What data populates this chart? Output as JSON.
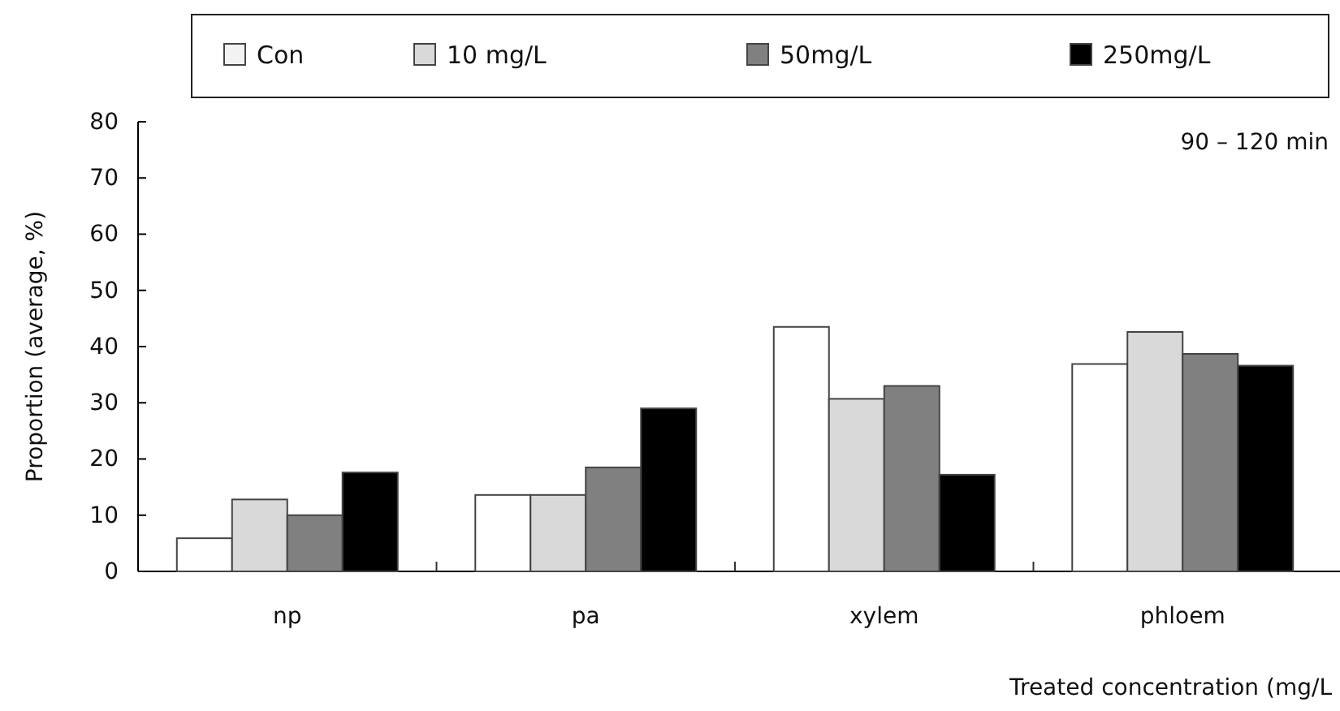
{
  "chart_data": {
    "type": "bar",
    "categories": [
      "np",
      "pa",
      "xylem",
      "phloem"
    ],
    "series": [
      {
        "name": "Con",
        "color": "#ffffff",
        "values": [
          5.9,
          13.6,
          43.5,
          36.9
        ]
      },
      {
        "name": "10 mg/L",
        "color": "#d9d9d9",
        "values": [
          12.8,
          13.6,
          30.7,
          42.6
        ]
      },
      {
        "name": "50mg/L",
        "color": "#808080",
        "values": [
          10,
          18.5,
          33,
          38.7
        ]
      },
      {
        "name": "250mg/L",
        "color": "#000000",
        "values": [
          17.6,
          29,
          17.2,
          36.6
        ]
      }
    ],
    "xlabel": "Treated concentration (mg/L",
    "ylabel": "Proportion (average, %)",
    "ylim": [
      0,
      80
    ],
    "yticks": [
      0,
      10,
      20,
      30,
      40,
      50,
      60,
      70,
      80
    ],
    "annotations": [
      "90 – 120 min"
    ],
    "legend": "top",
    "grid": false
  }
}
